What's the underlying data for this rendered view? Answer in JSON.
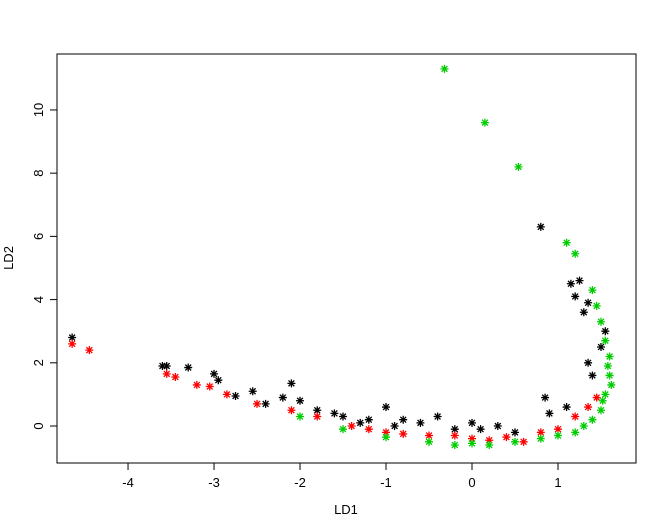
{
  "chart_data": {
    "type": "scatter",
    "x_label": "LD1",
    "y_label": "LD2",
    "xlim": [
      -4.826,
      1.907
    ],
    "ylim": [
      -1.17,
      11.77
    ],
    "xticks": [
      -4,
      -3,
      -2,
      -1,
      0,
      1
    ],
    "yticks": [
      0,
      2,
      4,
      6,
      8,
      10
    ],
    "series": [
      {
        "color": "#000000",
        "x": [
          -4.65,
          -3.55,
          -3.6,
          -3.3,
          -3.0,
          -2.95,
          -2.55,
          -2.1,
          -2.2,
          -2.0,
          -1.8,
          -1.5,
          -1.0,
          -0.8,
          -0.4,
          0.0,
          0.3,
          0.8,
          1.15,
          1.25,
          1.2,
          1.35,
          1.3,
          1.55,
          1.5,
          1.35,
          1.4,
          0.85,
          0.9,
          1.1,
          -1.2,
          -0.6,
          -2.4,
          -2.75,
          -1.6,
          -1.3,
          -0.9,
          -0.2,
          0.1,
          0.5
        ],
        "values": [
          2.8,
          1.9,
          1.9,
          1.85,
          1.65,
          1.45,
          1.1,
          1.35,
          0.9,
          0.8,
          0.5,
          0.3,
          0.6,
          0.2,
          0.3,
          0.1,
          0.0,
          6.3,
          4.5,
          4.6,
          4.1,
          3.9,
          3.6,
          3.0,
          2.5,
          2.0,
          1.6,
          0.9,
          0.4,
          0.6,
          0.2,
          0.1,
          0.7,
          0.95,
          0.4,
          0.1,
          0.0,
          -0.1,
          -0.1,
          -0.2
        ]
      },
      {
        "color": "#ff0000",
        "x": [
          -4.65,
          -4.45,
          -3.55,
          -3.45,
          -3.2,
          -3.05,
          -2.85,
          -2.5,
          -2.1,
          -1.8,
          -1.4,
          -1.0,
          -0.5,
          0.0,
          0.4,
          0.8,
          1.2,
          1.35,
          1.45,
          -0.2,
          0.6,
          1.0,
          -1.2,
          -0.8,
          0.2
        ],
        "values": [
          2.6,
          2.4,
          1.65,
          1.55,
          1.3,
          1.25,
          1.0,
          0.7,
          0.5,
          0.3,
          0.0,
          -0.2,
          -0.3,
          -0.4,
          -0.35,
          -0.2,
          0.3,
          0.6,
          0.9,
          -0.3,
          -0.5,
          -0.1,
          -0.1,
          -0.25,
          -0.45
        ]
      },
      {
        "color": "#00cd00",
        "x": [
          -0.32,
          0.15,
          0.54,
          1.1,
          1.2,
          1.4,
          1.45,
          1.5,
          1.55,
          1.6,
          1.6,
          1.55,
          1.5,
          1.3,
          1.0,
          0.5,
          0.0,
          -0.5,
          -1.0,
          -1.5,
          -2.0,
          1.4,
          1.2,
          0.8,
          -0.2,
          0.2,
          1.58,
          1.62,
          1.52
        ],
        "values": [
          11.3,
          9.6,
          8.2,
          5.8,
          5.45,
          4.3,
          3.8,
          3.3,
          2.7,
          2.2,
          1.6,
          1.0,
          0.5,
          0.0,
          -0.3,
          -0.5,
          -0.55,
          -0.5,
          -0.35,
          -0.1,
          0.3,
          0.2,
          -0.2,
          -0.4,
          -0.6,
          -0.6,
          1.9,
          1.3,
          0.8
        ]
      }
    ]
  }
}
